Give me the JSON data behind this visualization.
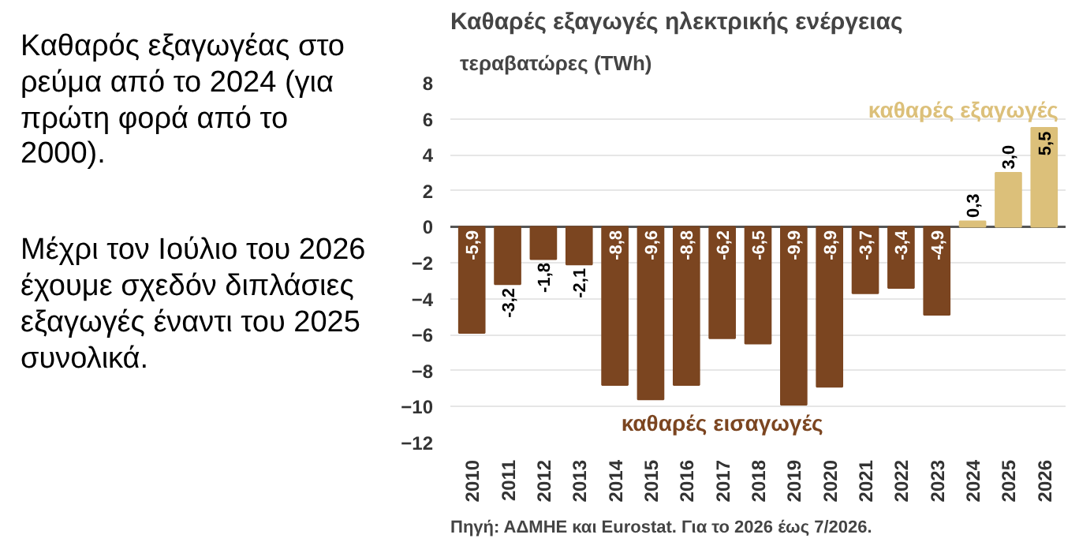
{
  "chart_data": {
    "type": "bar",
    "title": "Καθαρές εξαγωγές ηλεκτρικής ενέργειας",
    "ylabel": "τεραβατώρες (TWh)",
    "categories": [
      "2010",
      "2011",
      "2012",
      "2013",
      "2014",
      "2015",
      "2016",
      "2017",
      "2018",
      "2019",
      "2020",
      "2021",
      "2022",
      "2023",
      "2024",
      "2025",
      "2026"
    ],
    "series": [
      {
        "name": "καθαρές εισαγωγές",
        "color": "#7b4520",
        "values": [
          -5.9,
          -3.2,
          -1.8,
          -2.1,
          -8.8,
          -9.6,
          -8.8,
          -6.2,
          -6.5,
          -9.9,
          -8.9,
          -3.7,
          -3.4,
          -4.9,
          null,
          null,
          null
        ],
        "value_labels": [
          "-5,9",
          "-3,2",
          "-1,8",
          "-2,1",
          "-8,8",
          "-9,6",
          "-8,8",
          "-6,2",
          "-6,5",
          "-9,9",
          "-8,9",
          "-3,7",
          "-3,4",
          "-4,9",
          null,
          null,
          null
        ]
      },
      {
        "name": "καθαρές εξαγωγές",
        "color": "#dcc07a",
        "values": [
          null,
          null,
          null,
          null,
          null,
          null,
          null,
          null,
          null,
          null,
          null,
          null,
          null,
          null,
          0.3,
          3.0,
          5.5
        ],
        "value_labels": [
          null,
          null,
          null,
          null,
          null,
          null,
          null,
          null,
          null,
          null,
          null,
          null,
          null,
          null,
          "0,3",
          "3,0",
          "5,5"
        ]
      }
    ],
    "ylim": [
      -12,
      8
    ],
    "yticks": [
      -12,
      -10,
      -8,
      -6,
      -4,
      -2,
      0,
      2,
      4,
      6,
      8
    ],
    "grid": "y",
    "annotations": [
      "Καθαρός εξαγωγέας στο ρεύμα από το 2024 (για πρώτη φορά από το 2000).",
      "Μέχρι τον Ιούλιο του 2026 έχουμε σχεδόν διπλάσιες εξαγωγές έναντι του 2025 συνολικά.",
      "Πηγή: ΑΔΜΗΕ και Eurostat. Για το 2026 έως 7/2026."
    ]
  }
}
